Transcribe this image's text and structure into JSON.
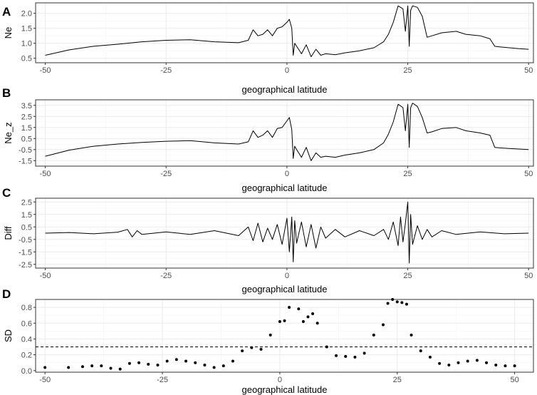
{
  "chart_data": [
    {
      "panel": "A",
      "type": "line",
      "xlabel": "geographical latitude",
      "ylabel": "Ne",
      "xlim": [
        -52,
        51
      ],
      "ylim": [
        0.35,
        2.35
      ],
      "xticks": [
        -50,
        -25,
        0,
        25,
        50
      ],
      "xtick_labels": [
        "-50",
        "-25",
        "0",
        "25",
        "50"
      ],
      "yticks": [
        0.5,
        1.0,
        1.5,
        2.0
      ],
      "ytick_labels": [
        "0.5",
        "1.0",
        "1.5",
        "2.0"
      ],
      "grid": true,
      "series": [
        {
          "x": [
            -50,
            -45,
            -40,
            -35,
            -30,
            -25,
            -20,
            -15,
            -10,
            -8,
            -7,
            -6,
            -5,
            -4,
            -3,
            -2,
            -1,
            0,
            0.5,
            1,
            1.3,
            1.6,
            2,
            3,
            4,
            5,
            6,
            7,
            8,
            10,
            12,
            15,
            18,
            20,
            21,
            22,
            23,
            24,
            24.5,
            25,
            25.3,
            25.6,
            26,
            27,
            28,
            29,
            30,
            32,
            35,
            37,
            40,
            42,
            43,
            44,
            46,
            48,
            50
          ],
          "y": [
            0.6,
            0.78,
            0.9,
            0.97,
            1.05,
            1.1,
            1.12,
            1.05,
            1.02,
            1.1,
            1.45,
            1.25,
            1.3,
            1.45,
            1.25,
            1.5,
            1.55,
            1.7,
            1.8,
            1.5,
            0.6,
            1.0,
            0.9,
            0.65,
            0.95,
            0.55,
            0.8,
            0.6,
            0.65,
            0.62,
            0.68,
            0.75,
            0.85,
            1.05,
            1.3,
            1.7,
            2.25,
            2.15,
            1.4,
            2.25,
            0.9,
            2.1,
            2.25,
            2.2,
            1.9,
            1.2,
            1.25,
            1.35,
            1.4,
            1.3,
            1.25,
            1.15,
            0.9,
            0.88,
            0.85,
            0.82,
            0.8
          ]
        }
      ]
    },
    {
      "panel": "B",
      "type": "line",
      "xlabel": "geographical latitude",
      "ylabel": "Ne_z",
      "xlim": [
        -52,
        51
      ],
      "ylim": [
        -2.0,
        4.0
      ],
      "xticks": [
        -50,
        -25,
        0,
        25,
        50
      ],
      "xtick_labels": [
        "-50",
        "-25",
        "0",
        "25",
        "50"
      ],
      "yticks": [
        -1.5,
        -0.5,
        0.5,
        1.5,
        2.5,
        3.5
      ],
      "ytick_labels": [
        "-1.5",
        "-0.5",
        "0.5",
        "1.5",
        "2.5",
        "3.5"
      ],
      "grid": true,
      "series": [
        {
          "x": [
            -50,
            -45,
            -40,
            -35,
            -30,
            -25,
            -20,
            -15,
            -10,
            -8,
            -7,
            -6,
            -5,
            -4,
            -3,
            -2,
            -1,
            0,
            0.5,
            1,
            1.3,
            1.6,
            2,
            3,
            4,
            5,
            6,
            7,
            8,
            10,
            12,
            15,
            18,
            20,
            21,
            22,
            23,
            24,
            24.5,
            25,
            25.3,
            25.6,
            26,
            27,
            28,
            29,
            30,
            32,
            35,
            37,
            40,
            42,
            43,
            44,
            46,
            48,
            50
          ],
          "y": [
            -1.1,
            -0.55,
            -0.2,
            0.0,
            0.15,
            0.25,
            0.3,
            0.1,
            0.0,
            0.2,
            1.2,
            0.6,
            0.8,
            1.2,
            0.6,
            1.4,
            1.5,
            2.1,
            2.4,
            1.3,
            -1.3,
            -0.2,
            -0.5,
            -1.2,
            -0.3,
            -1.5,
            -0.8,
            -1.2,
            -1.1,
            -1.2,
            -1.0,
            -0.8,
            -0.5,
            0.1,
            0.9,
            2.0,
            3.6,
            3.3,
            1.2,
            3.6,
            -0.3,
            3.3,
            3.7,
            3.4,
            2.4,
            1.0,
            1.1,
            1.4,
            1.5,
            1.2,
            1.0,
            0.8,
            -0.3,
            -0.35,
            -0.4,
            -0.45,
            -0.5
          ]
        }
      ]
    },
    {
      "panel": "C",
      "type": "line",
      "xlabel": "geographical latitude",
      "ylabel": "Diff",
      "xlim": [
        -52,
        51
      ],
      "ylim": [
        -2.8,
        2.8
      ],
      "xticks": [
        -50,
        -25,
        0,
        25,
        50
      ],
      "xtick_labels": [
        "-50",
        "-25",
        "0",
        "25",
        "50"
      ],
      "yticks": [
        -2.5,
        -1.5,
        -0.5,
        0.5,
        1.5,
        2.5
      ],
      "ytick_labels": [
        "-2.5",
        "-1.5",
        "-0.5",
        "0.5",
        "1.5",
        "2.5"
      ],
      "grid": true,
      "series": [
        {
          "x": [
            -50,
            -45,
            -40,
            -35,
            -33,
            -32,
            -31,
            -30,
            -25,
            -20,
            -15,
            -10,
            -8,
            -7,
            -6,
            -5,
            -4,
            -3,
            -2,
            -1,
            0,
            0.5,
            1,
            1.3,
            1.6,
            2,
            3,
            4,
            5,
            6,
            7,
            8,
            10,
            12,
            15,
            18,
            20,
            21,
            22,
            23,
            23.5,
            24,
            24.5,
            25,
            25.3,
            25.6,
            26,
            27,
            28,
            29,
            30,
            32,
            35,
            40,
            45,
            50
          ],
          "y": [
            0.0,
            0.05,
            -0.05,
            0.08,
            0.3,
            -0.3,
            0.2,
            -0.1,
            0.1,
            -0.1,
            0.2,
            -0.2,
            0.5,
            -0.6,
            0.8,
            -0.7,
            0.4,
            -0.5,
            0.7,
            -0.9,
            1.2,
            -1.5,
            1.3,
            -2.3,
            1.0,
            -0.8,
            0.9,
            -1.1,
            0.7,
            -1.2,
            0.5,
            -0.4,
            0.3,
            -0.3,
            0.2,
            -0.2,
            0.3,
            -0.5,
            0.9,
            -1.0,
            1.3,
            -0.7,
            0.8,
            2.5,
            -2.4,
            1.5,
            -0.9,
            0.6,
            -0.5,
            0.3,
            -0.3,
            0.2,
            -0.1,
            0.1,
            -0.05,
            0.0
          ]
        }
      ]
    },
    {
      "panel": "D",
      "type": "scatter",
      "xlabel": "geographical latitude",
      "ylabel": "SD",
      "xlim": [
        -52,
        54
      ],
      "ylim": [
        -0.02,
        0.9
      ],
      "xticks": [
        -50,
        -25,
        0,
        25,
        50
      ],
      "xtick_labels": [
        "-50",
        "-25",
        "0",
        "25",
        "50"
      ],
      "yticks": [
        0.0,
        0.2,
        0.4,
        0.6,
        0.8
      ],
      "ytick_labels": [
        "0.0",
        "0.2",
        "0.4",
        "0.6",
        "0.8"
      ],
      "grid": true,
      "hline": 0.3,
      "series": [
        {
          "x": [
            -50,
            -45,
            -42,
            -40,
            -38,
            -36,
            -34,
            -32,
            -30,
            -28,
            -26,
            -24,
            -22,
            -20,
            -18,
            -16,
            -14,
            -12,
            -10,
            -8,
            -6,
            -4,
            -2,
            0,
            1,
            2,
            4,
            5,
            6,
            7,
            8,
            10,
            12,
            14,
            16,
            18,
            20,
            22,
            23,
            24,
            25,
            26,
            27,
            28,
            30,
            32,
            34,
            36,
            38,
            40,
            42,
            44,
            46,
            48,
            50
          ],
          "y": [
            0.04,
            0.04,
            0.05,
            0.06,
            0.06,
            0.03,
            0.02,
            0.09,
            0.1,
            0.08,
            0.07,
            0.12,
            0.14,
            0.12,
            0.1,
            0.07,
            0.04,
            0.06,
            0.12,
            0.25,
            0.29,
            0.27,
            0.45,
            0.62,
            0.63,
            0.8,
            0.78,
            0.62,
            0.68,
            0.72,
            0.6,
            0.3,
            0.19,
            0.18,
            0.17,
            0.22,
            0.45,
            0.58,
            0.85,
            0.9,
            0.87,
            0.86,
            0.84,
            0.45,
            0.25,
            0.17,
            0.09,
            0.07,
            0.1,
            0.12,
            0.13,
            0.1,
            0.07,
            0.06,
            0.06
          ]
        }
      ]
    }
  ]
}
